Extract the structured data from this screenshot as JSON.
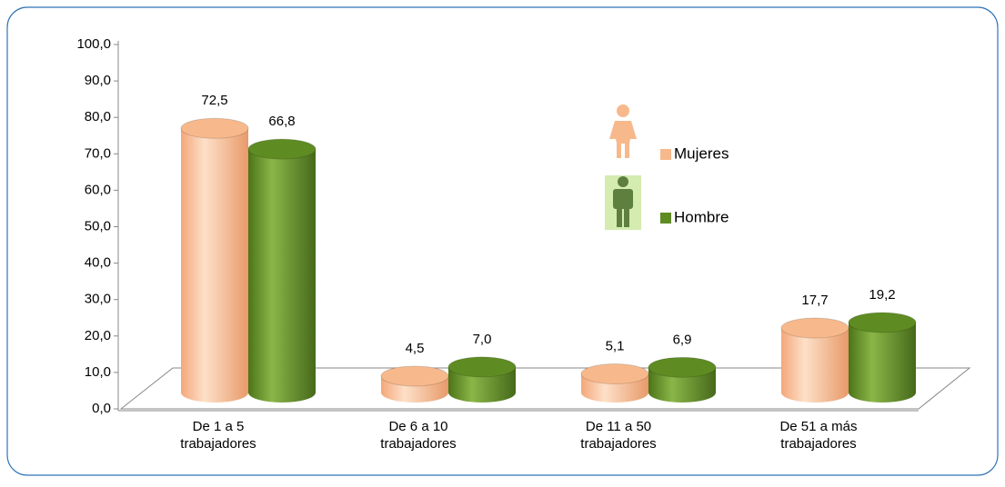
{
  "chart_data": {
    "type": "bar3d",
    "categories": [
      "De 1 a 5\ntrabajadores",
      "De 6 a 10\ntrabajadores",
      "De 11 a 50\ntrabajadores",
      "De 51 a más\ntrabajadores"
    ],
    "series": [
      {
        "name": "Mujeres",
        "color": "#f7b98c",
        "values": [
          72.5,
          4.5,
          5.1,
          17.7
        ],
        "value_labels": [
          "72,5",
          "4,5",
          "5,1",
          "17,7"
        ]
      },
      {
        "name": "Hombre",
        "color": "#5f8c22",
        "values": [
          66.8,
          7.0,
          6.9,
          19.2
        ],
        "value_labels": [
          "66,8",
          "7,0",
          "6,9",
          "19,2"
        ]
      }
    ],
    "ylim": [
      0,
      100
    ],
    "yticks": [
      {
        "value": 0,
        "label": "0,0"
      },
      {
        "value": 10,
        "label": "10,0"
      },
      {
        "value": 20,
        "label": "20,0"
      },
      {
        "value": 30,
        "label": "30,0"
      },
      {
        "value": 40,
        "label": "40,0"
      },
      {
        "value": 50,
        "label": "50,0"
      },
      {
        "value": 60,
        "label": "60,0"
      },
      {
        "value": 70,
        "label": "70,0"
      },
      {
        "value": 80,
        "label": "80,0"
      },
      {
        "value": 90,
        "label": "90,0"
      },
      {
        "value": 100,
        "label": "100,0"
      }
    ],
    "grid": false,
    "legend": "right"
  }
}
